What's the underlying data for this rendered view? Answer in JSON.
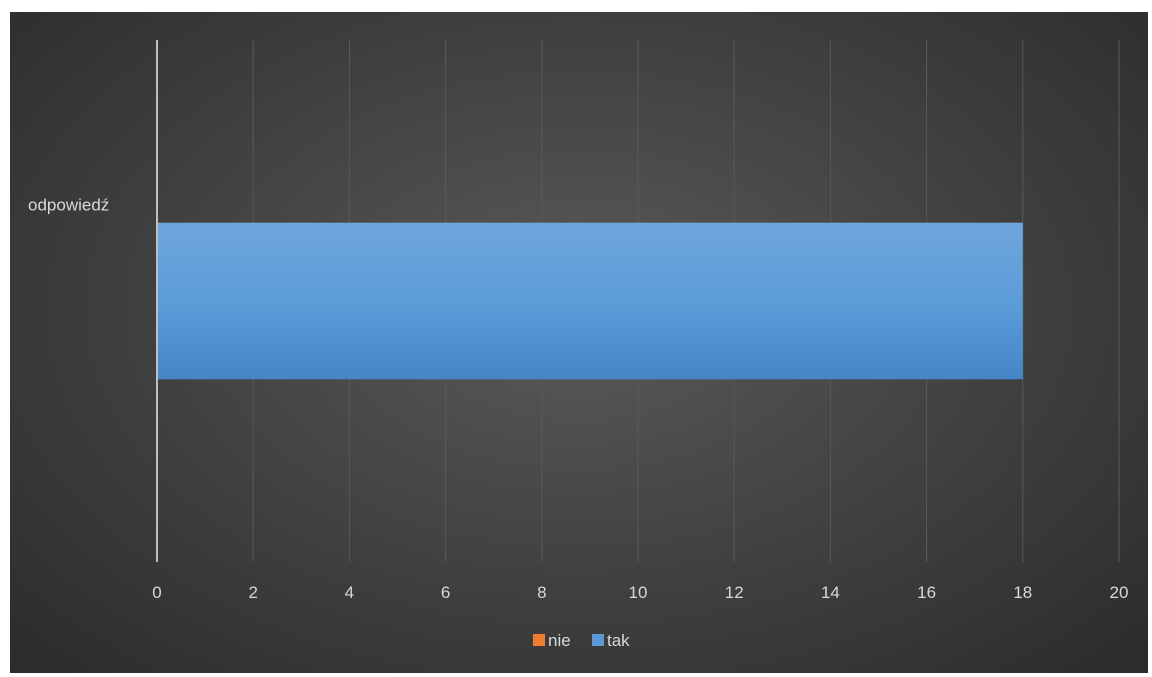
{
  "chart_data": {
    "type": "bar",
    "orientation": "horizontal",
    "bar_mode": "stacked",
    "categories": [
      "odpowiedź"
    ],
    "series": [
      {
        "name": "nie",
        "values": [
          0
        ],
        "color": "#ed7d31"
      },
      {
        "name": "tak",
        "values": [
          18
        ],
        "color": "#5b9bd5"
      }
    ],
    "x_ticks": [
      "0",
      "2",
      "4",
      "6",
      "8",
      "10",
      "12",
      "14",
      "16",
      "18",
      "20"
    ],
    "xlim": [
      0,
      20
    ],
    "grid": true,
    "legend_position": "bottom",
    "colors": {
      "background": "#404040",
      "gridline": "#595959",
      "axis_text": "#d9d9d9"
    }
  }
}
